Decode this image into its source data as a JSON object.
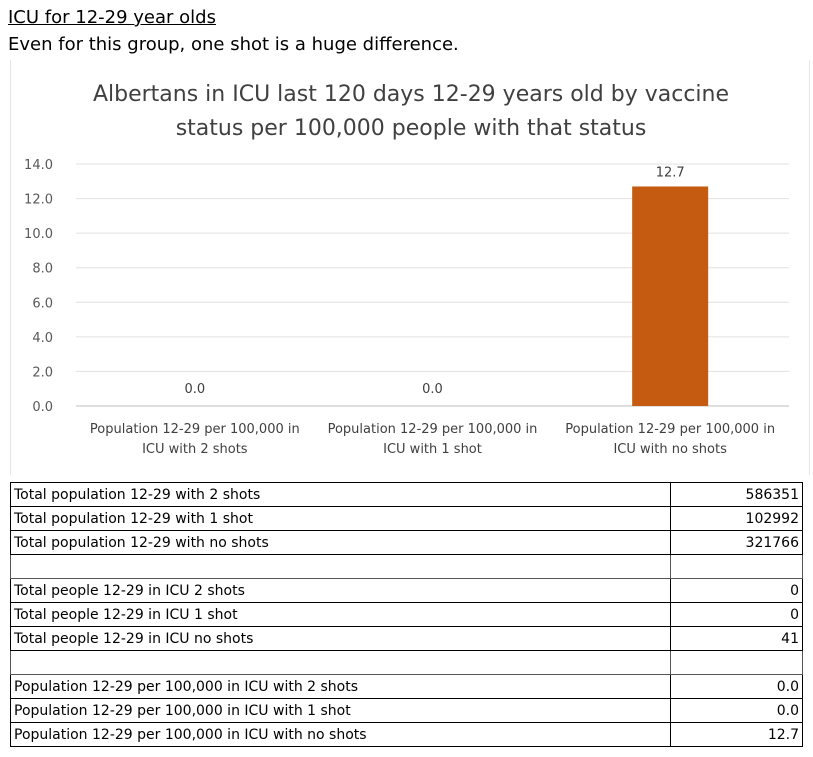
{
  "header": {
    "title": "ICU for 12-29 year olds",
    "subtitle": "Even for this group, one shot is a huge difference."
  },
  "chart_data": {
    "type": "bar",
    "title_lines": [
      "Albertans in ICU last 120 days 12-29 years old by vaccine",
      "status per 100,000 people with that status"
    ],
    "categories": [
      [
        "Population 12-29 per 100,000 in",
        "ICU with 2 shots"
      ],
      [
        "Population 12-29 per 100,000 in",
        "ICU with 1 shot"
      ],
      [
        "Population 12-29 per 100,000 in",
        "ICU with no shots"
      ]
    ],
    "values": [
      0.0,
      0.0,
      12.7
    ],
    "data_labels": [
      "0.0",
      "0.0",
      "12.7"
    ],
    "ylim": [
      0,
      14
    ],
    "yticks": [
      "0.0",
      "2.0",
      "4.0",
      "6.0",
      "8.0",
      "10.0",
      "12.0",
      "14.0"
    ],
    "ytick_values": [
      0,
      2,
      4,
      6,
      8,
      10,
      12,
      14
    ],
    "bar_color": "#c55a11",
    "grid": true,
    "legend": "none"
  },
  "table": {
    "groups": [
      [
        {
          "label": "Total population 12-29 with 2 shots",
          "value": "586351"
        },
        {
          "label": "Total population 12-29 with 1 shot",
          "value": "102992"
        },
        {
          "label": "Total population 12-29 with no shots",
          "value": "321766"
        }
      ],
      [
        {
          "label": "Total people 12-29 in ICU 2 shots",
          "value": "0"
        },
        {
          "label": "Total people 12-29 in ICU 1 shot",
          "value": "0"
        },
        {
          "label": "Total people 12-29 in ICU no shots",
          "value": "41"
        }
      ],
      [
        {
          "label": "Population 12-29 per 100,000 in ICU with 2 shots",
          "value": "0.0"
        },
        {
          "label": "Population 12-29 per 100,000 in ICU with 1 shot",
          "value": "0.0"
        },
        {
          "label": "Population 12-29 per 100,000 in ICU with no shots",
          "value": "12.7"
        }
      ]
    ]
  }
}
